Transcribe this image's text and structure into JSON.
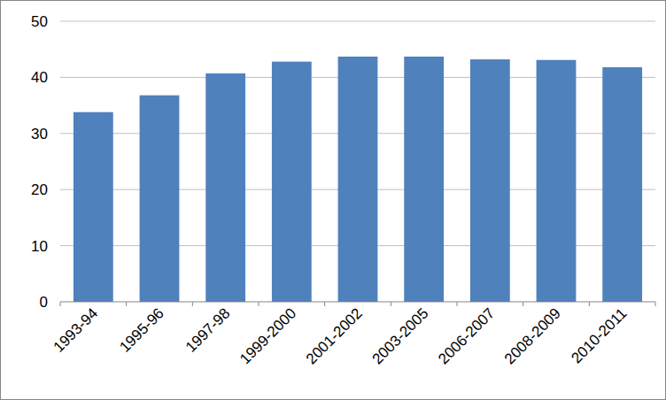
{
  "chart_data": {
    "type": "bar",
    "categories": [
      "1993-94",
      "1995-96",
      "1997-98",
      "1999-2000",
      "2001-2002",
      "2003-2005",
      "2006-2007",
      "2008-2009",
      "2010-2011"
    ],
    "values": [
      33.8,
      36.8,
      40.7,
      42.8,
      43.7,
      43.7,
      43.2,
      43.1,
      41.8
    ],
    "color": "#4f81bd",
    "ylim": [
      0,
      50
    ],
    "yticks": [
      0,
      10,
      20,
      30,
      40,
      50
    ],
    "grid": true
  }
}
